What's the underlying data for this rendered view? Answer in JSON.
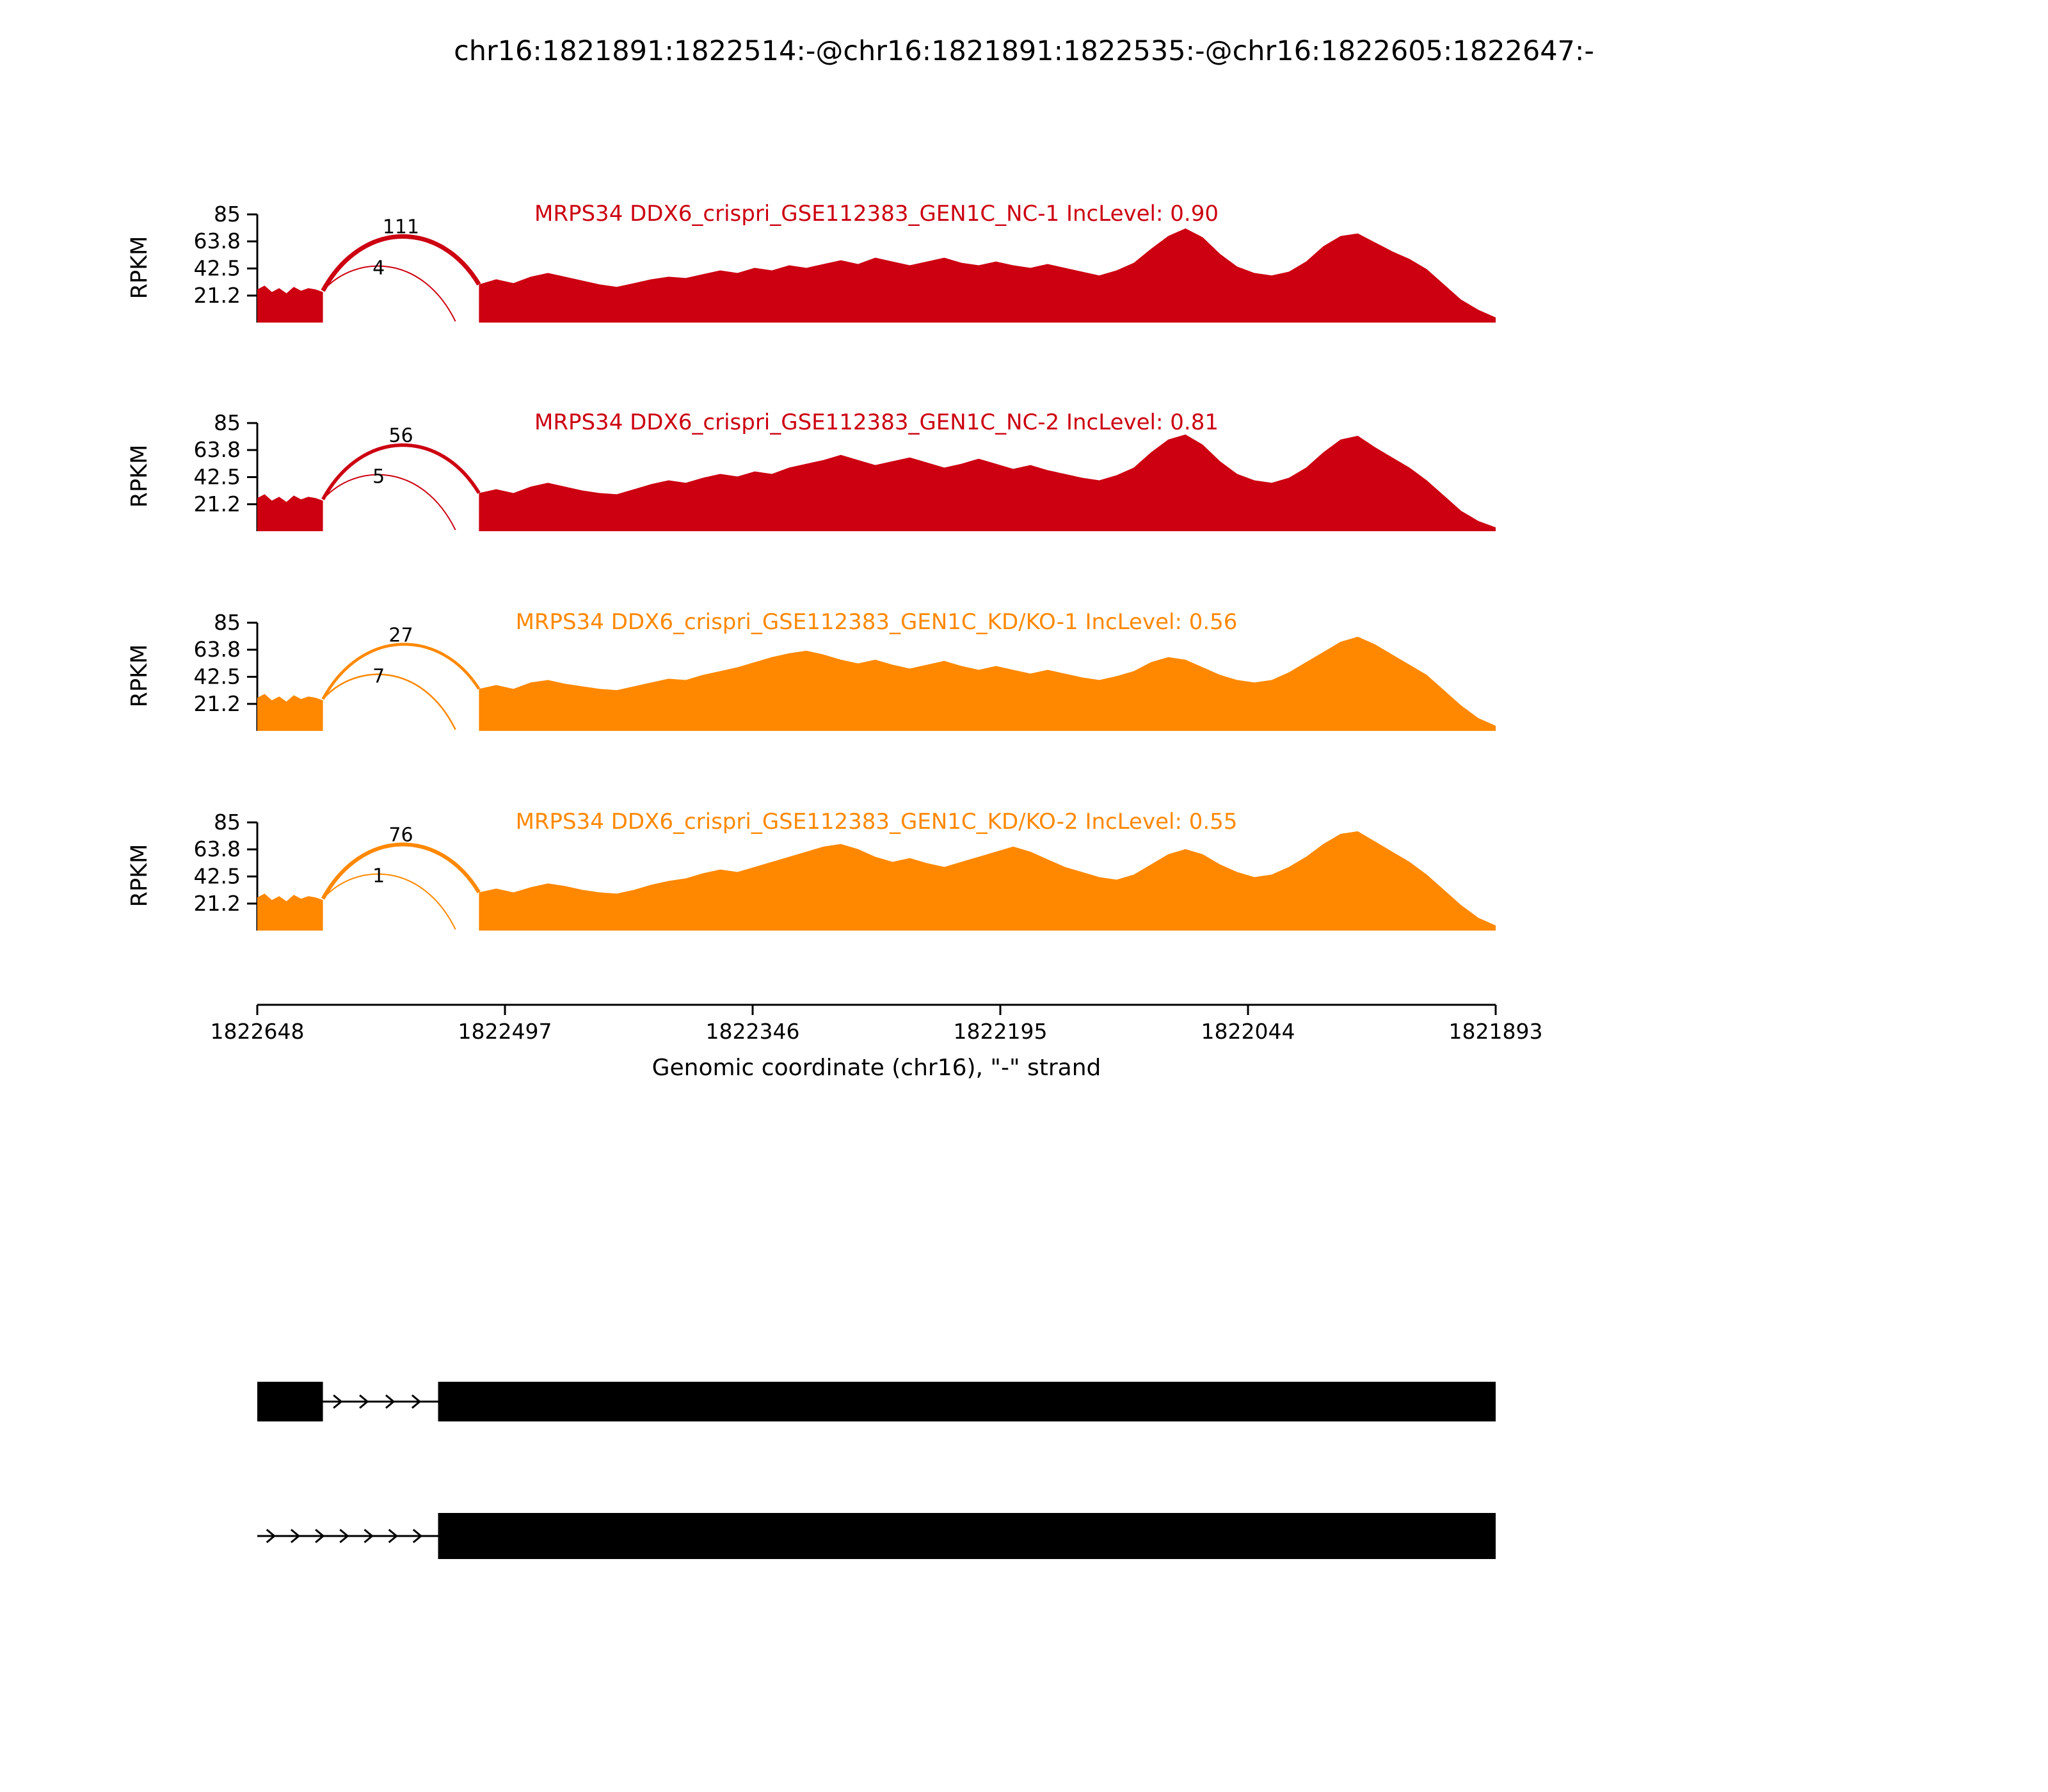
{
  "title": "chr16:1821891:1822514:-@chr16:1821891:1822535:-@chr16:1822605:1822647:-",
  "axis": {
    "ylabel": "RPKM",
    "xlabel": "Genomic coordinate (chr16), \"-\" strand"
  },
  "chart_data": {
    "type": "area",
    "subtype": "sashimi-plot",
    "ylim": [
      0,
      85
    ],
    "yticks": [
      85,
      63.8,
      42.5,
      21.2
    ],
    "xticks": [
      "1822648",
      "1822497",
      "1822346",
      "1822195",
      "1822044",
      "1821893"
    ],
    "tracks": [
      {
        "label": "MRPS34 DDX6_crispri_GSE112383_GEN1C_NC-1 IncLevel: 0.90",
        "color": "#CC0011",
        "junctions": [
          {
            "count": "111",
            "from": 0.053,
            "to": 0.179,
            "start_rpkm": 25,
            "end_rpkm": 30,
            "apex_rpkm": 60,
            "stroke_width": 7
          },
          {
            "count": "4",
            "from": 0.053,
            "to": 0.16,
            "start_rpkm": 25,
            "end_rpkm": 1,
            "apex_rpkm": 40,
            "stroke_width": 2,
            "label_x": 0.098,
            "label_rpkm": 38
          }
        ],
        "segments": [
          {
            "span": [
              0,
              0.053
            ],
            "rpkm": [
              26,
              29,
              24,
              27,
              23,
              28,
              25,
              27,
              26,
              24
            ]
          },
          {
            "span": [
              0.179,
              1.0
            ],
            "rpkm": [
              30,
              34,
              31,
              36,
              39,
              36,
              33,
              30,
              28,
              31,
              34,
              36,
              35,
              38,
              41,
              39,
              43,
              41,
              45,
              43,
              46,
              49,
              46,
              51,
              48,
              45,
              48,
              51,
              47,
              45,
              48,
              45,
              43,
              46,
              43,
              40,
              37,
              41,
              47,
              58,
              68,
              74,
              67,
              54,
              44,
              39,
              37,
              40,
              48,
              60,
              68,
              70,
              63,
              56,
              50,
              42,
              30,
              18,
              10,
              4
            ]
          }
        ]
      },
      {
        "label": "MRPS34 DDX6_crispri_GSE112383_GEN1C_NC-2 IncLevel: 0.81",
        "color": "#CC0011",
        "junctions": [
          {
            "count": "56",
            "from": 0.053,
            "to": 0.179,
            "start_rpkm": 25,
            "end_rpkm": 30,
            "apex_rpkm": 60,
            "stroke_width": 5.5
          },
          {
            "count": "5",
            "from": 0.053,
            "to": 0.16,
            "start_rpkm": 25,
            "end_rpkm": 1,
            "apex_rpkm": 40,
            "stroke_width": 2,
            "label_x": 0.098,
            "label_rpkm": 38
          }
        ],
        "segments": [
          {
            "span": [
              0,
              0.053
            ],
            "rpkm": [
              26,
              29,
              24,
              27,
              23,
              28,
              25,
              27,
              26,
              24
            ]
          },
          {
            "span": [
              0.179,
              1.0
            ],
            "rpkm": [
              30,
              33,
              30,
              35,
              38,
              35,
              32,
              30,
              29,
              33,
              37,
              40,
              38,
              42,
              45,
              43,
              47,
              45,
              50,
              53,
              56,
              60,
              56,
              52,
              55,
              58,
              54,
              50,
              53,
              57,
              53,
              49,
              52,
              48,
              45,
              42,
              40,
              44,
              50,
              62,
              72,
              76,
              68,
              55,
              45,
              40,
              38,
              42,
              50,
              62,
              72,
              75,
              66,
              58,
              50,
              40,
              28,
              16,
              8,
              3
            ]
          }
        ]
      },
      {
        "label": "MRPS34 DDX6_crispri_GSE112383_GEN1C_KD/KO-1 IncLevel: 0.56",
        "color": "#FF8800",
        "junctions": [
          {
            "count": "27",
            "from": 0.053,
            "to": 0.179,
            "start_rpkm": 25,
            "end_rpkm": 33,
            "apex_rpkm": 60,
            "stroke_width": 4.5
          },
          {
            "count": "7",
            "from": 0.053,
            "to": 0.16,
            "start_rpkm": 25,
            "end_rpkm": 1,
            "apex_rpkm": 40,
            "stroke_width": 2.5,
            "label_x": 0.098,
            "label_rpkm": 38
          }
        ],
        "segments": [
          {
            "span": [
              0,
              0.053
            ],
            "rpkm": [
              26,
              29,
              24,
              27,
              23,
              28,
              25,
              27,
              26,
              24
            ]
          },
          {
            "span": [
              0.179,
              1.0
            ],
            "rpkm": [
              33,
              36,
              33,
              38,
              40,
              37,
              35,
              33,
              32,
              35,
              38,
              41,
              40,
              44,
              47,
              50,
              54,
              58,
              61,
              63,
              60,
              56,
              53,
              56,
              52,
              49,
              52,
              55,
              51,
              48,
              51,
              48,
              45,
              48,
              45,
              42,
              40,
              43,
              47,
              54,
              58,
              56,
              50,
              44,
              40,
              38,
              40,
              46,
              54,
              62,
              70,
              74,
              68,
              60,
              52,
              44,
              32,
              20,
              10,
              4
            ]
          }
        ]
      },
      {
        "label": "MRPS34 DDX6_crispri_GSE112383_GEN1C_KD/KO-2 IncLevel: 0.55",
        "color": "#FF8800",
        "junctions": [
          {
            "count": "76",
            "from": 0.053,
            "to": 0.179,
            "start_rpkm": 25,
            "end_rpkm": 30,
            "apex_rpkm": 60,
            "stroke_width": 6
          },
          {
            "count": "1",
            "from": 0.053,
            "to": 0.16,
            "start_rpkm": 25,
            "end_rpkm": 1,
            "apex_rpkm": 40,
            "stroke_width": 2,
            "label_x": 0.098,
            "label_rpkm": 38
          }
        ],
        "segments": [
          {
            "span": [
              0,
              0.053
            ],
            "rpkm": [
              26,
              29,
              24,
              27,
              23,
              28,
              25,
              27,
              26,
              24
            ]
          },
          {
            "span": [
              0.179,
              1.0
            ],
            "rpkm": [
              30,
              33,
              30,
              34,
              37,
              35,
              32,
              30,
              29,
              32,
              36,
              39,
              41,
              45,
              48,
              46,
              50,
              54,
              58,
              62,
              66,
              68,
              64,
              58,
              54,
              57,
              53,
              50,
              54,
              58,
              62,
              66,
              62,
              56,
              50,
              46,
              42,
              40,
              44,
              52,
              60,
              64,
              60,
              52,
              46,
              42,
              44,
              50,
              58,
              68,
              76,
              78,
              70,
              62,
              54,
              44,
              32,
              20,
              10,
              4
            ]
          }
        ]
      }
    ]
  },
  "gene_structures": [
    {
      "exons": [
        [
          0,
          0.053
        ],
        [
          0.146,
          1.0
        ]
      ],
      "intron": [
        0.053,
        0.146
      ],
      "arrow_count": 4
    },
    {
      "exons": [
        [
          0.146,
          1.0
        ]
      ],
      "intron": [
        0,
        0.146
      ],
      "arrow_count": 7
    }
  ]
}
